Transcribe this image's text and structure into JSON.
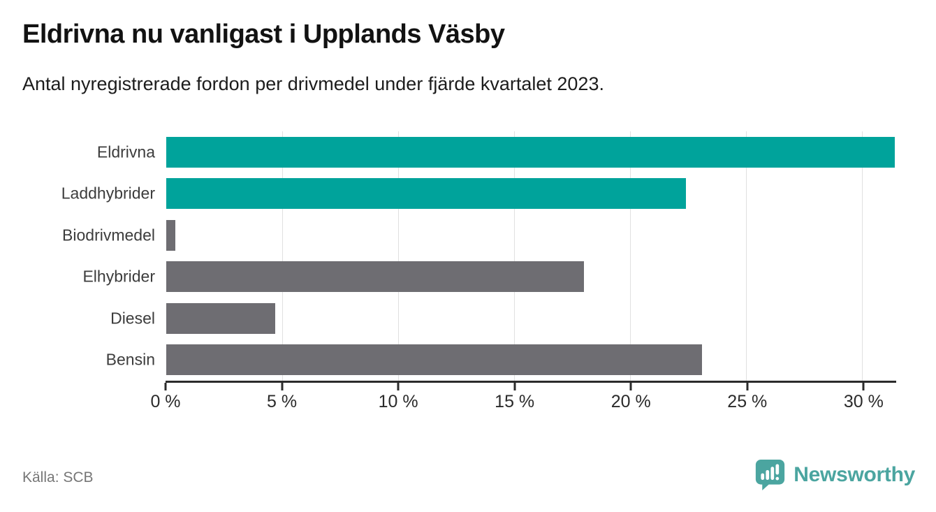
{
  "header": {
    "title": "Eldrivna nu vanligast i Upplands Väsby",
    "subtitle": "Antal nyregistrerade fordon per drivmedel under fjärde kvartalet 2023."
  },
  "footer": {
    "source": "Källa: SCB",
    "logo_text": "Newsworthy"
  },
  "colors": {
    "highlight_bar": "#00a39b",
    "default_bar": "#6e6d72",
    "logo_teal": "#4ba5a0",
    "axis": "#2b2b2b",
    "grid": "#e0e0e0"
  },
  "chart_data": {
    "type": "bar",
    "orientation": "horizontal",
    "title": "Eldrivna nu vanligast i Upplands Väsby",
    "subtitle": "Antal nyregistrerade fordon per drivmedel under fjärde kvartalet 2023.",
    "categories": [
      "Eldrivna",
      "Laddhybrider",
      "Biodrivmedel",
      "Elhybrider",
      "Diesel",
      "Bensin"
    ],
    "values": [
      31.4,
      22.4,
      0.4,
      18.0,
      4.7,
      23.1
    ],
    "unit": "%",
    "bar_colors": [
      "#00a39b",
      "#00a39b",
      "#6e6d72",
      "#6e6d72",
      "#6e6d72",
      "#6e6d72"
    ],
    "xlabel": "",
    "ylabel": "",
    "xlim": [
      0,
      31.4
    ],
    "x_ticks": [
      "0 %",
      "5 %",
      "10 %",
      "15 %",
      "20 %",
      "25 %",
      "30 %"
    ],
    "x_tick_values": [
      0,
      5,
      10,
      15,
      20,
      25,
      30
    ],
    "grid": true,
    "legend": false,
    "source": "Källa: SCB"
  }
}
